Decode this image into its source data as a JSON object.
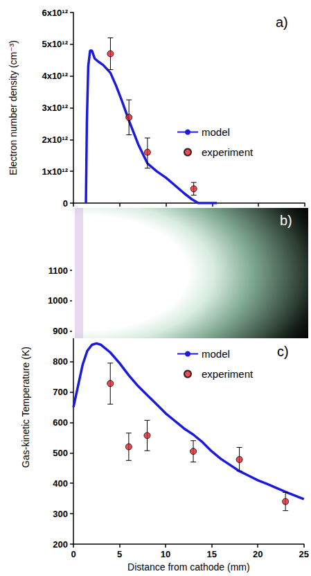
{
  "chart_data": [
    {
      "type": "line",
      "annotation": "a)",
      "y_label": "Electron number density (cm⁻³)",
      "xlim": [
        0,
        25
      ],
      "xticks": [
        0,
        5,
        10,
        15,
        20,
        25
      ],
      "ylim": [
        0,
        6000000000000.0
      ],
      "yticks": [
        0,
        {
          "value": 1000000000000.0,
          "label": "1x10¹²"
        },
        {
          "value": 2000000000000.0,
          "label": "2x10¹²"
        },
        {
          "value": 3000000000000.0,
          "label": "3x10¹²"
        },
        {
          "value": 4000000000000.0,
          "label": "4x10¹²"
        },
        {
          "value": 5000000000000.0,
          "label": "5x10¹²"
        },
        {
          "value": 6000000000000.0,
          "label": "6x10¹²"
        }
      ],
      "tick_labels": "y",
      "grid": false,
      "legend": "right",
      "series": [
        {
          "name": "model",
          "type": "line",
          "color": "#1a1adc",
          "line_style": "solid",
          "x": [
            1.35,
            1.45,
            1.6,
            1.8,
            2.0,
            2.3,
            2.7,
            3.2,
            4.0,
            4.6,
            5.2,
            6.0,
            7.0,
            8.0,
            9.0,
            10.0,
            11.0,
            12.0,
            12.8,
            13.5,
            14.5,
            15.5
          ],
          "values": [
            0,
            2500000000000.0,
            4300000000000.0,
            4800000000000.0,
            4800000000000.0,
            4550000000000.0,
            4450000000000.0,
            4350000000000.0,
            4100000000000.0,
            3700000000000.0,
            3250000000000.0,
            2600000000000.0,
            1850000000000.0,
            1250000000000.0,
            1000000000000.0,
            800000000000.0,
            550000000000.0,
            300000000000.0,
            120000000000.0,
            0,
            0,
            0
          ]
        },
        {
          "name": "experiment",
          "type": "scatter",
          "color": "#e0202a",
          "marker": "circle",
          "x": [
            4,
            6,
            8,
            13
          ],
          "values": [
            4700000000000.0,
            2700000000000.0,
            1600000000000.0,
            450000000000.0
          ],
          "error_range": [
            [
              4200000000000.0,
              5200000000000.0
            ],
            [
              2150000000000.0,
              3250000000000.0
            ],
            [
              1100000000000.0,
              2050000000000.0
            ],
            [
              250000000000.0,
              650000000000.0
            ]
          ]
        }
      ]
    },
    {
      "type": "line",
      "annotation": "c)",
      "x_label": "Distance from cathode (mm)",
      "y_label": "Gas-kinetic Temperature (K)",
      "xlim": [
        0,
        25
      ],
      "xticks": [
        0,
        5,
        10,
        15,
        20,
        25
      ],
      "ylim": [
        200,
        1100
      ],
      "yticks": [
        200,
        300,
        400,
        500,
        600,
        700,
        800,
        900,
        1000,
        1100
      ],
      "grid": false,
      "legend": "top",
      "series": [
        {
          "name": "model",
          "type": "line",
          "color": "#1a1adc",
          "line_style": "solid",
          "x": [
            0,
            0.5,
            1,
            1.5,
            2,
            2.5,
            3,
            4,
            5,
            6,
            7,
            8,
            9,
            10,
            11,
            12,
            13,
            14,
            15,
            16,
            17,
            18,
            19,
            20,
            21,
            22,
            23,
            24,
            25
          ],
          "values": [
            650,
            720,
            790,
            835,
            855,
            860,
            855,
            830,
            795,
            755,
            720,
            690,
            660,
            630,
            605,
            580,
            560,
            535,
            505,
            480,
            460,
            440,
            425,
            410,
            398,
            385,
            372,
            360,
            348
          ]
        },
        {
          "name": "experiment",
          "type": "scatter",
          "color": "#e0202a",
          "marker": "circle",
          "x": [
            4,
            6,
            8,
            13,
            18,
            23
          ],
          "values": [
            728,
            520,
            557,
            505,
            478,
            340
          ],
          "error_range": [
            [
              660,
              795
            ],
            [
              475,
              565
            ],
            [
              507,
              607
            ],
            [
              470,
              540
            ],
            [
              440,
              518
            ],
            [
              310,
              370
            ]
          ]
        }
      ]
    }
  ],
  "photo": {
    "label": "b)"
  }
}
